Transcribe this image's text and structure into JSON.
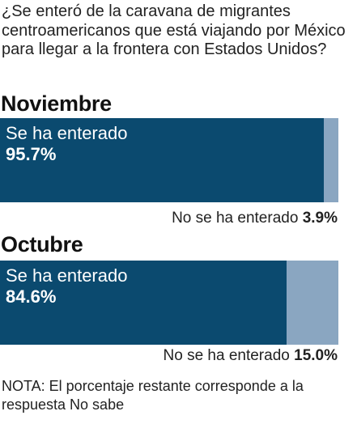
{
  "question": "¿Se enteró de la caravana de migrantes centroamericanos que está viajando por México para llegar a la frontera con Estados Unidos?",
  "note": "NOTA: El porcentaje restante corresponde a la respuesta No sabe",
  "colors": {
    "primary": "#0b4a6f",
    "secondary": "#8aa6c1"
  },
  "chart_data": {
    "type": "bar",
    "title": "¿Se enteró de la caravana de migrantes centroamericanos que está viajando por México para llegar a la frontera con Estados Unidos?",
    "categories": [
      "Noviembre",
      "Octubre"
    ],
    "series": [
      {
        "name": "Se ha enterado",
        "values": [
          95.7,
          84.6
        ],
        "labels": [
          "95.7%",
          "84.6%"
        ]
      },
      {
        "name": "No se ha enterado",
        "values": [
          3.9,
          15.0
        ],
        "labels": [
          "3.9%",
          "15.0%"
        ]
      }
    ],
    "ylim": [
      0,
      100
    ],
    "note": "NOTA: El porcentaje restante corresponde a la respuesta No sabe"
  }
}
